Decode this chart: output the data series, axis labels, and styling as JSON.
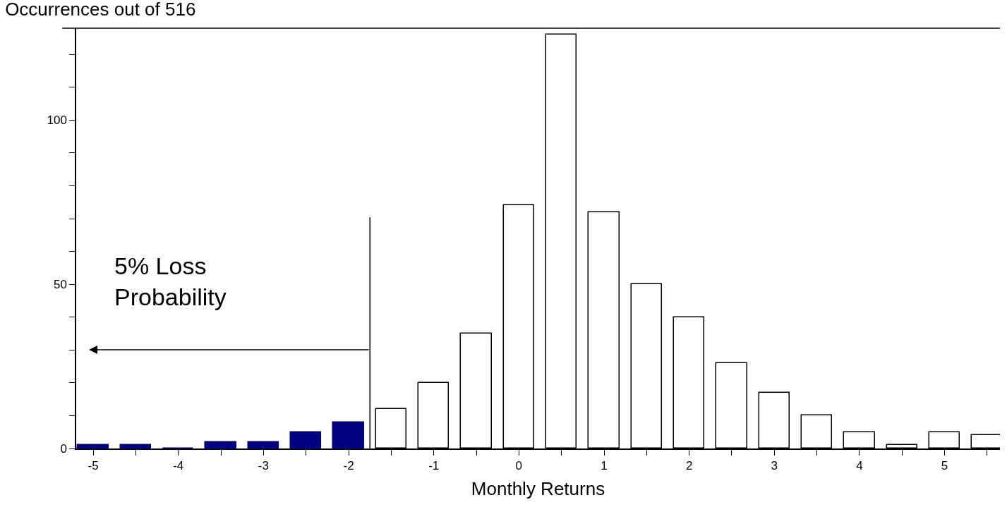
{
  "chart_data": {
    "type": "bar",
    "title": "Occurrences out of 516",
    "xlabel": "Monthly Returns",
    "x": [
      -5,
      -4.5,
      -4,
      -3.5,
      -3,
      -2.5,
      -2,
      -1.5,
      -1,
      -0.5,
      0,
      0.5,
      1,
      1.5,
      2,
      2.5,
      3,
      3.5,
      4,
      4.5,
      5,
      5.5
    ],
    "values": [
      1,
      1,
      0,
      2,
      2,
      5,
      8,
      12,
      20,
      35,
      74,
      126,
      72,
      50,
      40,
      26,
      17,
      10,
      5,
      1,
      5,
      4
    ],
    "colors": [
      "#000080",
      "#000080",
      "#000080",
      "#000080",
      "#000080",
      "#000080",
      "#000080",
      "#ffffff",
      "#ffffff",
      "#ffffff",
      "#ffffff",
      "#ffffff",
      "#ffffff",
      "#ffffff",
      "#ffffff",
      "#ffffff",
      "#ffffff",
      "#ffffff",
      "#ffffff",
      "#ffffff",
      "#ffffff",
      "#ffffff"
    ],
    "xlim": [
      -5.2,
      5.65
    ],
    "xticks": [
      -5,
      {
        "value": -4.5,
        "label": null
      },
      -4,
      {
        "value": -3.5,
        "label": null
      },
      -3,
      {
        "value": -2.5,
        "label": null
      },
      -2,
      {
        "value": -1.5,
        "label": null
      },
      -1,
      {
        "value": -0.5,
        "label": null
      },
      0,
      {
        "value": 0.5,
        "label": null
      },
      1,
      {
        "value": 1.5,
        "label": null
      },
      2,
      {
        "value": 2.5,
        "label": null
      },
      3,
      {
        "value": 3.5,
        "label": null
      },
      4,
      {
        "value": 4.5,
        "label": null
      },
      5,
      {
        "value": 5.5,
        "label": null
      }
    ],
    "ylim": [
      0,
      128
    ],
    "yticks": [
      0,
      {
        "value": 10,
        "label": null
      },
      {
        "value": 20,
        "label": null
      },
      {
        "value": 30,
        "label": null
      },
      {
        "value": 40,
        "label": null
      },
      50,
      {
        "value": 60,
        "label": null
      },
      {
        "value": 70,
        "label": null
      },
      {
        "value": 80,
        "label": null
      },
      {
        "value": 90,
        "label": null
      },
      100,
      {
        "value": 110,
        "label": null
      },
      {
        "value": 120,
        "label": null
      }
    ],
    "ref_lines": [
      {
        "axis": "x",
        "value": -1.75,
        "label": null,
        "color": "#000000"
      }
    ],
    "annotations": [
      "5% Loss\nProbability"
    ]
  }
}
